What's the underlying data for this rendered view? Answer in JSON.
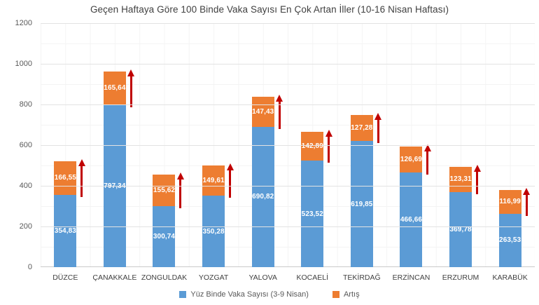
{
  "chart_data": {
    "type": "bar",
    "stacked": true,
    "title": "Geçen Haftaya Göre 100 Binde Vaka Sayısı En Çok Artan İller (10-16 Nisan Haftası)",
    "categories": [
      "DÜZCE",
      "ÇANAKKALE",
      "ZONGULDAK",
      "YOZGAT",
      "YALOVA",
      "KOCAELİ",
      "TEKİRDAĞ",
      "ERZİNCAN",
      "ERZURUM",
      "KARABÜK"
    ],
    "series": [
      {
        "name": "Yüz Binde Vaka Sayısı (3-9 Nisan)",
        "color": "#5B9BD5",
        "values": [
          354.83,
          797.34,
          300.74,
          350.28,
          690.82,
          523.52,
          619.85,
          466.66,
          369.78,
          263.53
        ],
        "labels": [
          "354,83",
          "797,34",
          "300,74",
          "350,28",
          "690,82",
          "523,52",
          "619,85",
          "466,66",
          "369,78",
          "263,53"
        ]
      },
      {
        "name": "Artış",
        "color": "#ED7D31",
        "values": [
          166.55,
          165.64,
          155.62,
          149.61,
          147.43,
          142.89,
          127.28,
          126.69,
          123.31,
          116.99
        ],
        "labels": [
          "166,55",
          "165,64",
          "155,62",
          "149,61",
          "147,43",
          "142,89",
          "127,28",
          "126,69",
          "123,31",
          "116,99"
        ]
      }
    ],
    "ylim": [
      0,
      1200
    ],
    "ytick_step": 200,
    "yticks": [
      "0",
      "200",
      "400",
      "600",
      "800",
      "1000",
      "1200"
    ],
    "grid": true,
    "legend_position": "bottom",
    "annotation": {
      "shape": "up-arrow",
      "color": "#C00000",
      "per_category": true,
      "meaning": "increase vs previous week"
    }
  },
  "colors": {
    "bar_blue": "#5B9BD5",
    "bar_orange": "#ED7D31",
    "arrow_red": "#C00000",
    "gridline": "#E3E3E3",
    "axis_line": "#C9C9C9",
    "title_text": "#404040",
    "axis_text": "#595959",
    "data_label_text": "#FFFFFF"
  }
}
